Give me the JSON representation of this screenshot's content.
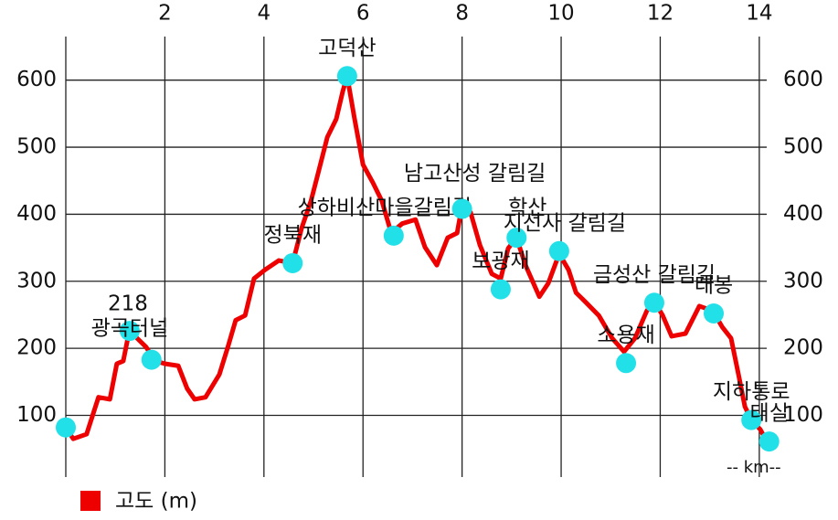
{
  "chart_data": {
    "type": "line",
    "xlim": [
      0,
      14.15
    ],
    "xticks": [
      2,
      4,
      6,
      8,
      10,
      12,
      14
    ],
    "ylim": [
      8,
      665
    ],
    "yticks": [
      100,
      200,
      300,
      400,
      500,
      600
    ],
    "grid": true,
    "legend": "bottom-left",
    "x_unit_label": "-- km--",
    "x": [
      0,
      0.15,
      0.42,
      0.66,
      0.89,
      1.03,
      1.16,
      1.29,
      1.44,
      1.62,
      1.81,
      2.0,
      2.27,
      2.45,
      2.6,
      2.82,
      3.1,
      3.28,
      3.43,
      3.62,
      3.8,
      4.02,
      4.3,
      4.58,
      4.76,
      4.95,
      5.09,
      5.28,
      5.46,
      5.59,
      5.68,
      5.83,
      6.0,
      6.2,
      6.38,
      6.57,
      6.79,
      7.06,
      7.25,
      7.49,
      7.71,
      7.9,
      8.0,
      8.17,
      8.36,
      8.6,
      8.78,
      8.93,
      9.1,
      9.28,
      9.56,
      9.74,
      9.96,
      10.15,
      10.3,
      10.48,
      10.76,
      11.03,
      11.27,
      11.49,
      11.73,
      11.88,
      12.05,
      12.23,
      12.51,
      12.79,
      13.06,
      13.25,
      13.43,
      13.58,
      13.71,
      13.84,
      14.02,
      14.17
    ],
    "series": [
      {
        "name": "고도 (m)",
        "color": "#ee0000",
        "values": [
          82,
          65,
          72,
          127,
          124,
          177,
          181,
          229,
          215,
          202,
          181,
          177,
          174,
          140,
          124,
          127,
          161,
          204,
          242,
          249,
          304,
          317,
          331,
          327,
          379,
          420,
          460,
          515,
          542,
          583,
          606,
          542,
          474,
          447,
          420,
          372,
          386,
          392,
          351,
          324,
          365,
          372,
          413,
          403,
          354,
          311,
          304,
          349,
          365,
          324,
          277,
          297,
          341,
          317,
          283,
          270,
          249,
          215,
          195,
          215,
          256,
          270,
          249,
          218,
          222,
          263,
          256,
          232,
          215,
          161,
          113,
          93,
          79,
          59
        ]
      }
    ],
    "waypoints": {
      "color": "#22e0e8",
      "x": [
        0,
        1.29,
        1.73,
        4.58,
        5.68,
        6.62,
        8.0,
        9.1,
        9.96,
        8.78,
        11.31,
        11.88,
        13.08,
        13.84,
        14.2
      ],
      "values": [
        82,
        226,
        183,
        327,
        606,
        368,
        408,
        365,
        345,
        288,
        178,
        268,
        252,
        93,
        61
      ],
      "labels": [
        null,
        "광곡터널",
        null,
        "정북재",
        "고덕산",
        "상하비산마을갈림길",
        "남고산성 갈림길",
        "학산",
        "지선사 갈림길",
        "보광재",
        "소용재",
        "금성산 갈림길",
        "태봉",
        "지하통로",
        "태실"
      ]
    },
    "annotations": [
      "218"
    ]
  }
}
